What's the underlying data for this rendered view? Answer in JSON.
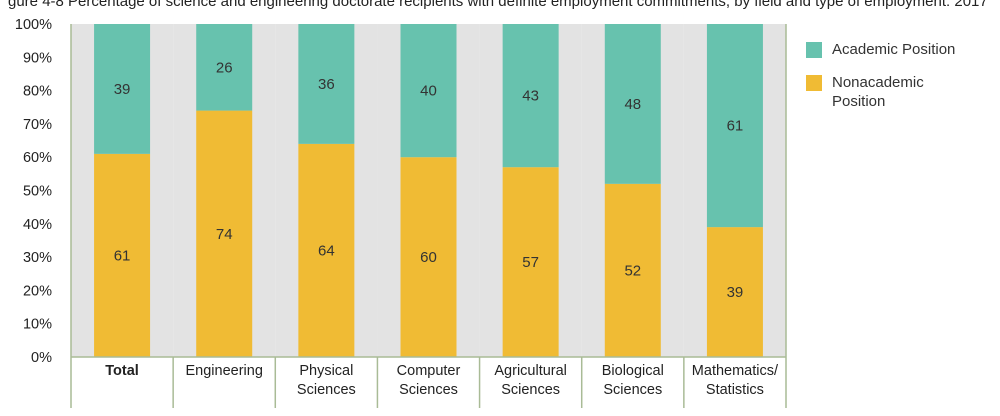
{
  "chart_data": {
    "type": "bar",
    "stacked": true,
    "percent_axis": true,
    "title": "gure 4-8 Percentage of science and engineering doctorate recipients with definite employment commitments, by field and type of employment: 2017",
    "categories": [
      "Total",
      "Engineering",
      "Physical\nSciences",
      "Computer\nSciences",
      "Agricultural\nSciences",
      "Biological\nSciences",
      "Mathematics/\nStatistics"
    ],
    "series": [
      {
        "name": "Nonacademic Position",
        "values": [
          61,
          74,
          64,
          60,
          57,
          52,
          39
        ]
      },
      {
        "name": "Academic Position",
        "values": [
          39,
          26,
          36,
          40,
          43,
          48,
          61
        ]
      }
    ],
    "ylim": [
      0,
      100
    ],
    "yticks": [
      "0%",
      "10%",
      "20%",
      "30%",
      "40%",
      "50%",
      "60%",
      "70%",
      "80%",
      "90%",
      "100%"
    ],
    "grid": false,
    "legend_position": "right",
    "colors": {
      "academic": "#67c2ae",
      "nonacademic": "#f0bb34",
      "column_bg": "#e3e3e3",
      "frame": "#a9bb96"
    }
  },
  "legend": [
    {
      "label": "Academic Position",
      "color": "#67c2ae"
    },
    {
      "label": "Nonacademic Position",
      "color": "#f0bb34"
    }
  ]
}
